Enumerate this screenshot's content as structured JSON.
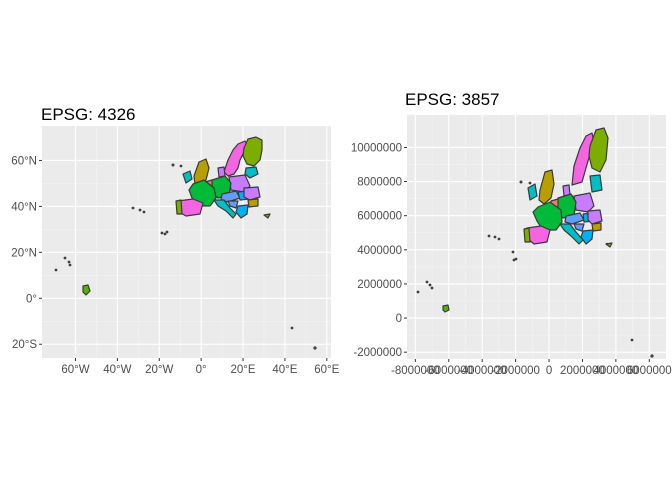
{
  "chart_data": [
    {
      "type": "map",
      "title": "EPSG: 4326",
      "projection": "geographic (longitude/latitude)",
      "x_ticks": [
        {
          "value": -60,
          "label": "60°W"
        },
        {
          "value": -40,
          "label": "40°W"
        },
        {
          "value": -20,
          "label": "20°W"
        },
        {
          "value": 0,
          "label": "0°"
        },
        {
          "value": 20,
          "label": "20°E"
        },
        {
          "value": 40,
          "label": "40°E"
        },
        {
          "value": 60,
          "label": "60°E"
        }
      ],
      "y_ticks": [
        {
          "value": -20,
          "label": "20°S"
        },
        {
          "value": 0,
          "label": "0°"
        },
        {
          "value": 20,
          "label": "20°N"
        },
        {
          "value": 40,
          "label": "40°N"
        },
        {
          "value": 60,
          "label": "60°N"
        }
      ],
      "xlim": [
        -76,
        62
      ],
      "ylim": [
        -26,
        75
      ],
      "grid": true
    },
    {
      "type": "map",
      "title": "EPSG: 3857",
      "projection": "Web Mercator (metres)",
      "x_ticks": [
        {
          "value": -8000000,
          "label": "-8000000"
        },
        {
          "value": -6000000,
          "label": "-6000000"
        },
        {
          "value": -4000000,
          "label": "-4000000"
        },
        {
          "value": -2000000,
          "label": "-2000000"
        },
        {
          "value": 0,
          "label": "0"
        },
        {
          "value": 2000000,
          "label": "2000000"
        },
        {
          "value": 4000000,
          "label": "4000000"
        },
        {
          "value": 6000000,
          "label": "6000000"
        }
      ],
      "y_ticks": [
        {
          "value": -2000000,
          "label": "-2000000"
        },
        {
          "value": 0,
          "label": "0"
        },
        {
          "value": 2000000,
          "label": "2000000"
        },
        {
          "value": 4000000,
          "label": "4000000"
        },
        {
          "value": 6000000,
          "label": "6000000"
        },
        {
          "value": 8000000,
          "label": "8000000"
        },
        {
          "value": 10000000,
          "label": "10000000"
        }
      ],
      "xlim": [
        -8500000,
        7000000
      ],
      "ylim": [
        -2400000,
        11900000
      ],
      "grid": true
    }
  ],
  "fill_palette": [
    "#f564e3",
    "#7cae00",
    "#00bfc4",
    "#b79f00",
    "#00ba38",
    "#c77cff",
    "#619cff",
    "#f8766d",
    "#00b0f6",
    "#e76bf3",
    "#53b400"
  ],
  "border_color": "#3a3a3a",
  "panel_background": "#ebebeb"
}
